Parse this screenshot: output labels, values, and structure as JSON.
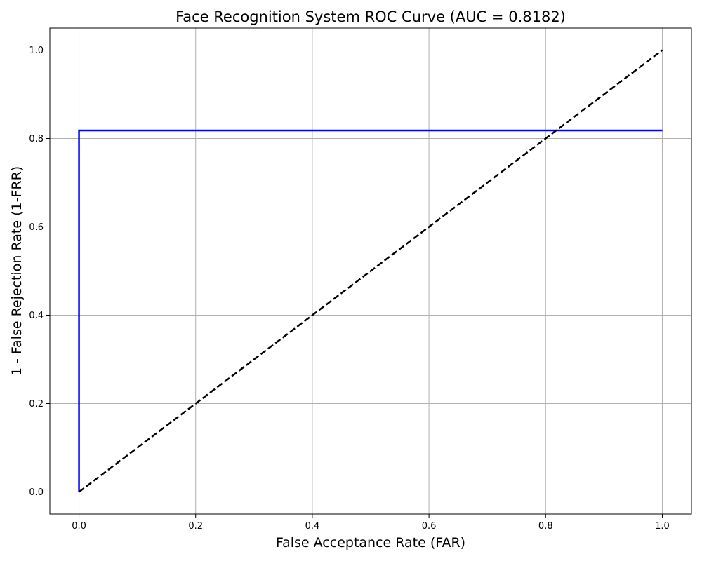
{
  "chart_data": {
    "type": "line",
    "title": "Face Recognition System ROC Curve (AUC = 0.8182)",
    "xlabel": "False Acceptance Rate (FAR)",
    "ylabel": "1 - False Rejection Rate (1-FRR)",
    "xlim": [
      -0.05,
      1.05
    ],
    "ylim": [
      -0.05,
      1.05
    ],
    "xticks": [
      0.0,
      0.2,
      0.4,
      0.6,
      0.8,
      1.0
    ],
    "yticks": [
      0.0,
      0.2,
      0.4,
      0.6,
      0.8,
      1.0
    ],
    "xtick_labels": [
      "0.0",
      "0.2",
      "0.4",
      "0.6",
      "0.8",
      "1.0"
    ],
    "ytick_labels": [
      "0.0",
      "0.2",
      "0.4",
      "0.6",
      "0.8",
      "1.0"
    ],
    "grid": true,
    "legend": "none",
    "series": [
      {
        "style": "solid",
        "color": "#0000ff",
        "x": [
          0.0,
          0.0,
          1.0
        ],
        "y": [
          0.0,
          0.8182,
          0.8182
        ]
      },
      {
        "style": "dashed",
        "color": "#000000",
        "x": [
          0.0,
          1.0
        ],
        "y": [
          0.0,
          1.0
        ]
      }
    ],
    "colors": {
      "grid": "#b0b0b0",
      "axes": "#000000"
    }
  }
}
